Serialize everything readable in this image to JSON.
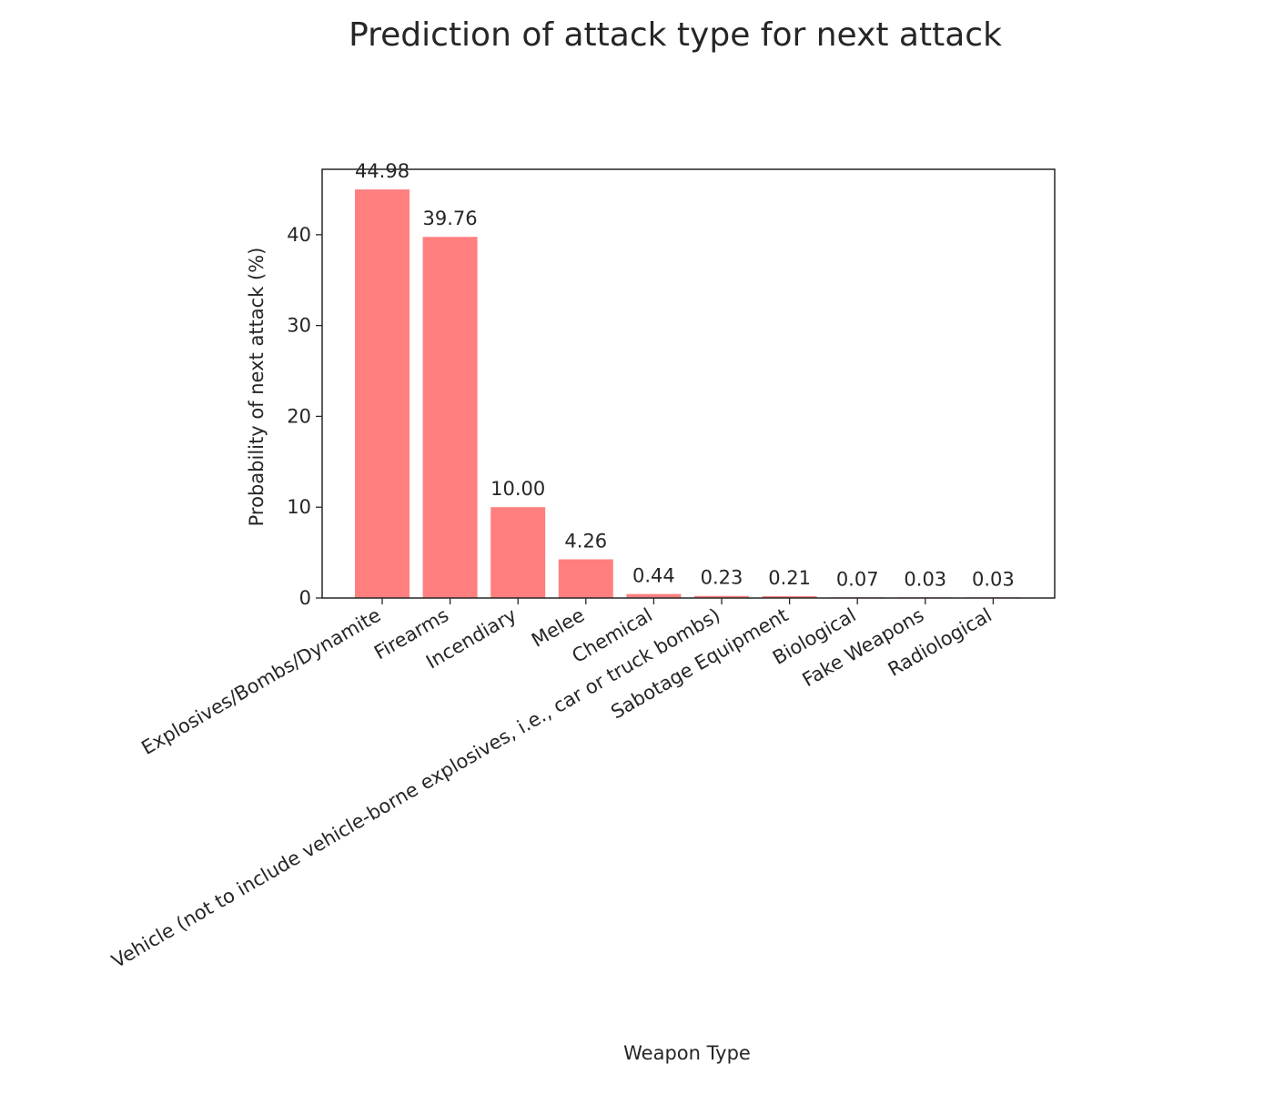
{
  "chart_data": {
    "type": "bar",
    "title": "Prediction of attack type for next attack",
    "xlabel": "Weapon Type",
    "ylabel": "Probability of next attack (%)",
    "categories": [
      "Explosives/Bombs/Dynamite",
      "Firearms",
      "Incendiary",
      "Melee",
      "Chemical",
      "Vehicle (not to include vehicle-borne explosives, i.e., car or truck bombs)",
      "Sabotage Equipment",
      "Biological",
      "Fake Weapons",
      "Radiological"
    ],
    "values": [
      44.98,
      39.76,
      10.0,
      4.26,
      0.44,
      0.23,
      0.21,
      0.07,
      0.03,
      0.03
    ],
    "value_labels": [
      "44.98",
      "39.76",
      "10.00",
      "4.26",
      "0.44",
      "0.23",
      "0.21",
      "0.07",
      "0.03",
      "0.03"
    ],
    "ylim": [
      0,
      47.2
    ],
    "yticks": [
      0,
      10,
      20,
      30,
      40
    ],
    "bar_color": "#ff7f7f",
    "grid": false,
    "legend": "none"
  }
}
